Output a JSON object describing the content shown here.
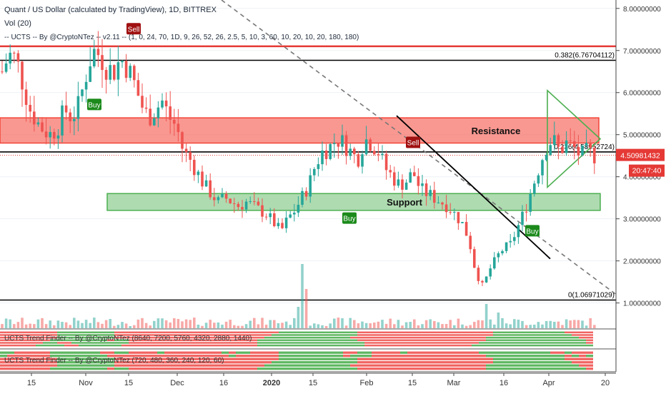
{
  "header": {
    "title": "Quant / US Dollar (calculated by TradingView), 1D, BITTREX",
    "vol": "Vol (20)",
    "indicator": "-- UCTS -- By @CryptoNTez -- v2.11 -- (1, 0, 24, 70, 1D, 9, 26, 52, 26, 2.5, 5, 10, 3, 60, 10, 20, 10, 20, 180, 180)"
  },
  "panels": {
    "trend1": "UCTS Trend Finder -- By @CryptoNTez (8640, 7200, 5760, 4320, 2880, 1440)",
    "trend2": "UCTS Trend Finder -- By @CryptoNTez (720, 480, 360, 240, 120, 60)"
  },
  "colors": {
    "up": "#26a69a",
    "down": "#ef5350",
    "resistance_fill": "#f44336",
    "support_fill": "#4caf50",
    "buy": "#1b8a1b",
    "sell": "#a01010",
    "price_badge": "#e53935",
    "triangle": "#4caf50"
  },
  "chart_data": {
    "type": "candlestick",
    "y_axis": {
      "min": 0.4,
      "max": 8.2,
      "ticks": [
        "8.00000000",
        "7.00000000",
        "6.00000000",
        "5.00000000",
        "4.00000000",
        "3.00000000",
        "2.00000000",
        "1.00000000"
      ],
      "tick_values": [
        8,
        7,
        6,
        5,
        4,
        3,
        2,
        1
      ]
    },
    "x_axis": {
      "ticks": [
        "15",
        "Nov",
        "15",
        "Dec",
        "16",
        "2020",
        "15",
        "Feb",
        "15",
        "Mar",
        "16",
        "Apr",
        "20"
      ]
    },
    "price_label": "4.50981432",
    "countdown": "20:47:40",
    "current_price": 4.50981432,
    "levels": [
      {
        "value": 7.1,
        "color": "#e53935",
        "label": ""
      },
      {
        "value": 6.76704112,
        "color": "#000000",
        "label": "0.382(6.76704112)"
      },
      {
        "value": 4.58952724,
        "color": "#000000",
        "label": "0.236(4.58952724)"
      },
      {
        "value": 1.06971029,
        "color": "#000000",
        "label": "0(1.06971029)"
      }
    ],
    "zones": [
      {
        "label": "Resistance",
        "low": 4.8,
        "high": 5.4,
        "color": "#f44336"
      },
      {
        "label": "Support",
        "low": 3.2,
        "high": 3.6,
        "color": "#4caf50"
      }
    ],
    "signals": [
      {
        "text": "Sell",
        "type": "sell"
      },
      {
        "text": "Buy",
        "type": "buy"
      },
      {
        "text": "Buy",
        "type": "buy"
      },
      {
        "text": "Sell",
        "type": "sell"
      },
      {
        "text": "Buy",
        "type": "buy"
      }
    ],
    "price_path": [
      6.5,
      6.9,
      6.8,
      6.2,
      5.6,
      5.3,
      5.1,
      5.0,
      5.2,
      5.6,
      5.4,
      5.7,
      6.4,
      7.0,
      6.9,
      6.6,
      6.5,
      6.8,
      6.6,
      6.2,
      5.7,
      5.4,
      5.6,
      5.8,
      5.4,
      5.2,
      4.6,
      4.4,
      4.1,
      3.8,
      3.6,
      3.4,
      3.5,
      3.4,
      3.3,
      3.4,
      3.3,
      3.2,
      3.1,
      2.9,
      2.7,
      3.0,
      3.2,
      3.5,
      3.8,
      4.3,
      4.6,
      4.7,
      4.9,
      4.8,
      4.6,
      4.4,
      4.9,
      4.8,
      4.6,
      4.2,
      4.0,
      3.8,
      3.9,
      4.1,
      3.7,
      3.6,
      3.5,
      3.4,
      3.3,
      3.1,
      2.9,
      2.5,
      1.7,
      1.4,
      1.8,
      2.1,
      2.3,
      2.4,
      2.8,
      3.2,
      3.7,
      4.2,
      4.7,
      4.9,
      4.6,
      4.8,
      4.7,
      4.5,
      4.6,
      4.5
    ]
  }
}
